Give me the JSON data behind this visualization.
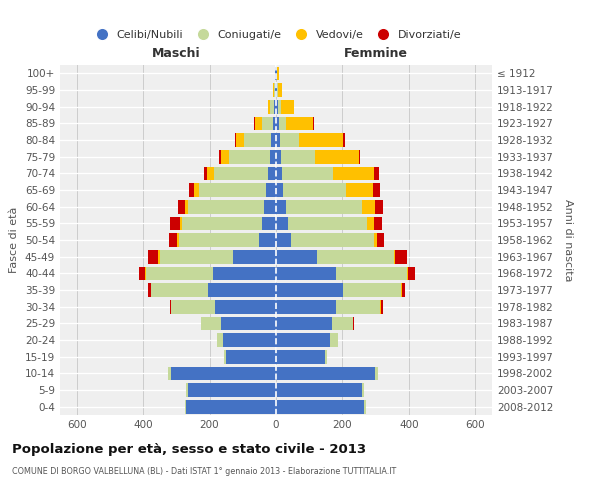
{
  "age_groups": [
    "0-4",
    "5-9",
    "10-14",
    "15-19",
    "20-24",
    "25-29",
    "30-34",
    "35-39",
    "40-44",
    "45-49",
    "50-54",
    "55-59",
    "60-64",
    "65-69",
    "70-74",
    "75-79",
    "80-84",
    "85-89",
    "90-94",
    "95-99",
    "100+"
  ],
  "birth_years": [
    "2008-2012",
    "2003-2007",
    "1998-2002",
    "1993-1997",
    "1988-1992",
    "1983-1987",
    "1978-1982",
    "1973-1977",
    "1968-1972",
    "1963-1967",
    "1958-1962",
    "1953-1957",
    "1948-1952",
    "1943-1947",
    "1938-1942",
    "1933-1937",
    "1928-1932",
    "1923-1927",
    "1918-1922",
    "1913-1917",
    "≤ 1912"
  ],
  "male_celibi": [
    270,
    265,
    315,
    150,
    160,
    165,
    185,
    205,
    190,
    130,
    50,
    42,
    35,
    30,
    25,
    18,
    15,
    10,
    5,
    3,
    2
  ],
  "male_coniugati": [
    5,
    5,
    10,
    5,
    18,
    60,
    130,
    170,
    200,
    220,
    242,
    242,
    230,
    202,
    162,
    122,
    82,
    32,
    12,
    4,
    2
  ],
  "male_vedovi": [
    0,
    0,
    0,
    0,
    0,
    0,
    0,
    2,
    3,
    5,
    5,
    6,
    10,
    15,
    20,
    25,
    22,
    22,
    8,
    2,
    0
  ],
  "male_divorziati": [
    0,
    0,
    0,
    0,
    0,
    2,
    5,
    8,
    20,
    30,
    25,
    30,
    20,
    15,
    10,
    8,
    5,
    2,
    0,
    0,
    0
  ],
  "female_nubili": [
    265,
    260,
    298,
    148,
    162,
    168,
    182,
    202,
    182,
    122,
    46,
    36,
    30,
    22,
    18,
    15,
    12,
    8,
    5,
    3,
    2
  ],
  "female_coniugate": [
    5,
    5,
    10,
    5,
    25,
    65,
    132,
    175,
    212,
    232,
    248,
    238,
    228,
    190,
    155,
    102,
    58,
    22,
    10,
    3,
    2
  ],
  "female_vedove": [
    0,
    0,
    0,
    0,
    0,
    0,
    2,
    2,
    3,
    5,
    10,
    20,
    40,
    80,
    122,
    132,
    132,
    82,
    38,
    12,
    4
  ],
  "female_divorziate": [
    0,
    0,
    0,
    0,
    0,
    2,
    5,
    10,
    20,
    36,
    20,
    25,
    25,
    20,
    15,
    5,
    5,
    3,
    2,
    0,
    0
  ],
  "color_celibi": "#4472c4",
  "color_coniugati": "#c5d99a",
  "color_vedovi": "#ffc000",
  "color_divorziati": "#cc0000",
  "xlim": 650,
  "title": "Popolazione per età, sesso e stato civile - 2013",
  "subtitle": "COMUNE DI BORGO VALBELLUNA (BL) - Dati ISTAT 1° gennaio 2013 - Elaborazione TUTTITALIA.IT",
  "label_maschi": "Maschi",
  "label_femmine": "Femmine",
  "ylabel_left": "Fasce di età",
  "ylabel_right": "Anni di nascita",
  "legend_labels": [
    "Celibi/Nubili",
    "Coniugati/e",
    "Vedovi/e",
    "Divorziati/e"
  ],
  "bg_color": "#efefef",
  "grid_color": "#cccccc"
}
